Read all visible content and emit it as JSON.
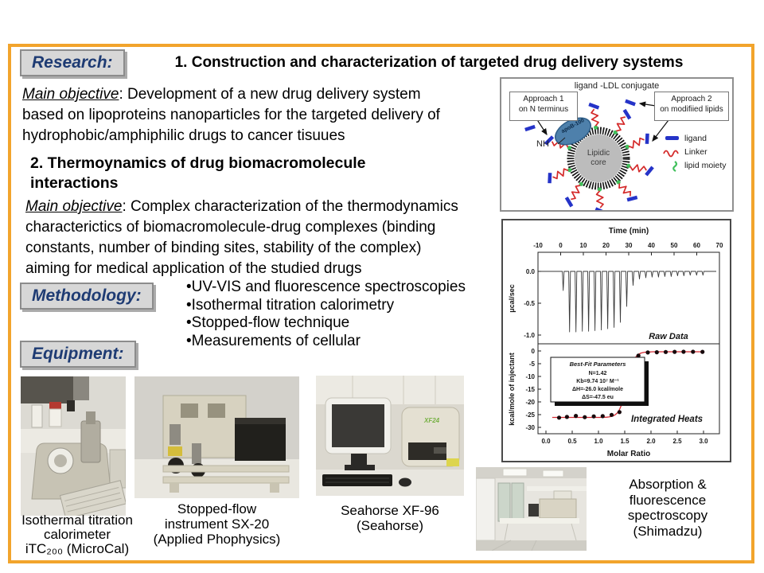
{
  "slide": {
    "border_color": "#F2A42C",
    "label_color": "#1E3B73",
    "research_label": "Research:",
    "title": "1. Construction and characterization of targeted drug delivery systems",
    "objective1_lead": "Main objective",
    "objective1_lines": [
      ": Development of a new drug delivery system",
      "based on lipoproteins nanoparticles for the targeted delivery of",
      "hydrophobic/amphiphilic drugs to cancer tisuues"
    ],
    "section2_lines": [
      "2. Thermoynamics of drug biomacromolecule",
      "interactions"
    ],
    "objective2_lead": "Main objective",
    "objective2_lines": [
      ": Complex characterization of the thermodynamics",
      "characterictics of biomacromolecule-drug complexes (binding",
      "constants, number of binding sites, stability of the complex)",
      "aiming for medical application of the studied drugs"
    ],
    "methodology_label": "Methodology:",
    "methodology_items": [
      "UV-VIS and fluorescence spectroscopies",
      "Isothermal titration calorimetry",
      "Stopped-flow technique",
      "Measurements of cellular"
    ],
    "equipment_label": "Equipment:"
  },
  "diagram": {
    "title": "ligand -LDL conjugate",
    "approach1_line1": "Approach 1",
    "approach1_line2": "on N terminus",
    "approach2_line1": "Approach 2",
    "approach2_line2": "on modifiied lipids",
    "nh_label": "NH",
    "apob_label": "apoB-100",
    "core_label": "Lipidic core",
    "legend": [
      {
        "label": "ligand",
        "color": "#2533c8"
      },
      {
        "label": "Linker",
        "color": "#d42a2a"
      },
      {
        "label": "lipid moiety",
        "color": "#41c05c"
      }
    ]
  },
  "chart_data": [
    {
      "type": "line",
      "title": "Raw Data",
      "xlabel": "Time (min)",
      "ylabel": "μcal/sec",
      "xlim": [
        -10,
        70
      ],
      "ylim": [
        -1.15,
        0.15
      ],
      "xticks": [
        -10,
        0,
        10,
        20,
        30,
        40,
        50,
        60,
        70
      ],
      "yticks": [
        "0.0",
        "-0.5",
        "-1.0"
      ],
      "spike_times": [
        1.2,
        4.0,
        6.8,
        9.6,
        12.4,
        15.2,
        18.0,
        20.8,
        23.6,
        26.4,
        29.2,
        32.0,
        34.8,
        37.6,
        40.4,
        43.2,
        46.0,
        48.8,
        51.6,
        54.4,
        57.2,
        60.0,
        62.8
      ],
      "spike_depths": [
        -0.3,
        -0.95,
        -0.95,
        -0.94,
        -0.94,
        -0.93,
        -0.92,
        -0.9,
        -0.88,
        -0.8,
        -0.55,
        -0.22,
        -0.12,
        -0.1,
        -0.09,
        -0.09,
        -0.08,
        -0.08,
        -0.07,
        -0.07,
        -0.06,
        -0.06,
        -0.06
      ]
    },
    {
      "type": "scatter",
      "title": "Integrated Heats",
      "xlabel": "Molar Ratio",
      "ylabel": "kcal/mole of injectant",
      "xlim": [
        0,
        3.3
      ],
      "ylim": [
        -31,
        2
      ],
      "xticks": [
        "0.0",
        "0.5",
        "1.0",
        "1.5",
        "2.0",
        "2.5",
        "3.0"
      ],
      "yticks": [
        "0",
        "-5",
        "-10",
        "-15",
        "-20",
        "-25",
        "-30"
      ],
      "points_x": [
        0.25,
        0.4,
        0.57,
        0.74,
        0.91,
        1.08,
        1.25,
        1.4,
        1.47,
        1.6,
        1.76,
        1.94,
        2.11,
        2.28,
        2.45,
        2.62,
        2.8,
        2.98
      ],
      "points_y": [
        -26.2,
        -25.9,
        -25.5,
        -26.0,
        -25.7,
        -25.6,
        -25.1,
        -24.0,
        -19.5,
        -6.6,
        -1.8,
        -0.6,
        -0.5,
        -0.4,
        -0.35,
        -0.3,
        -0.3,
        -0.35
      ],
      "fit_curve": {
        "bottom": -26.1,
        "top": -0.3,
        "center": 1.54,
        "width": 0.07
      },
      "curve_color": "#d42a33",
      "fit_box": {
        "header": "Best-Fit Parameters",
        "lines": [
          "N=1.42",
          "Kb=9.74 10⁷ M⁻¹",
          "ΔH=-26.0 kcal/mole",
          "ΔS=-47.5 eu"
        ]
      }
    }
  ],
  "equipment_photos": [
    {
      "lines": [
        "Isothermal titration",
        "calorimeter",
        "iTC₂₀₀ (MicroCal)"
      ]
    },
    {
      "lines": [
        "Stopped-flow",
        "instrument SX-20",
        "(Applied Phophysics)"
      ]
    },
    {
      "lines": [
        "Seahorse XF-96",
        "(Seahorse)"
      ],
      "device_label": "XF24"
    },
    {
      "lines": [
        "Absorption &",
        "fluorescence",
        "spectroscopy",
        "(Shimadzu)"
      ]
    }
  ]
}
